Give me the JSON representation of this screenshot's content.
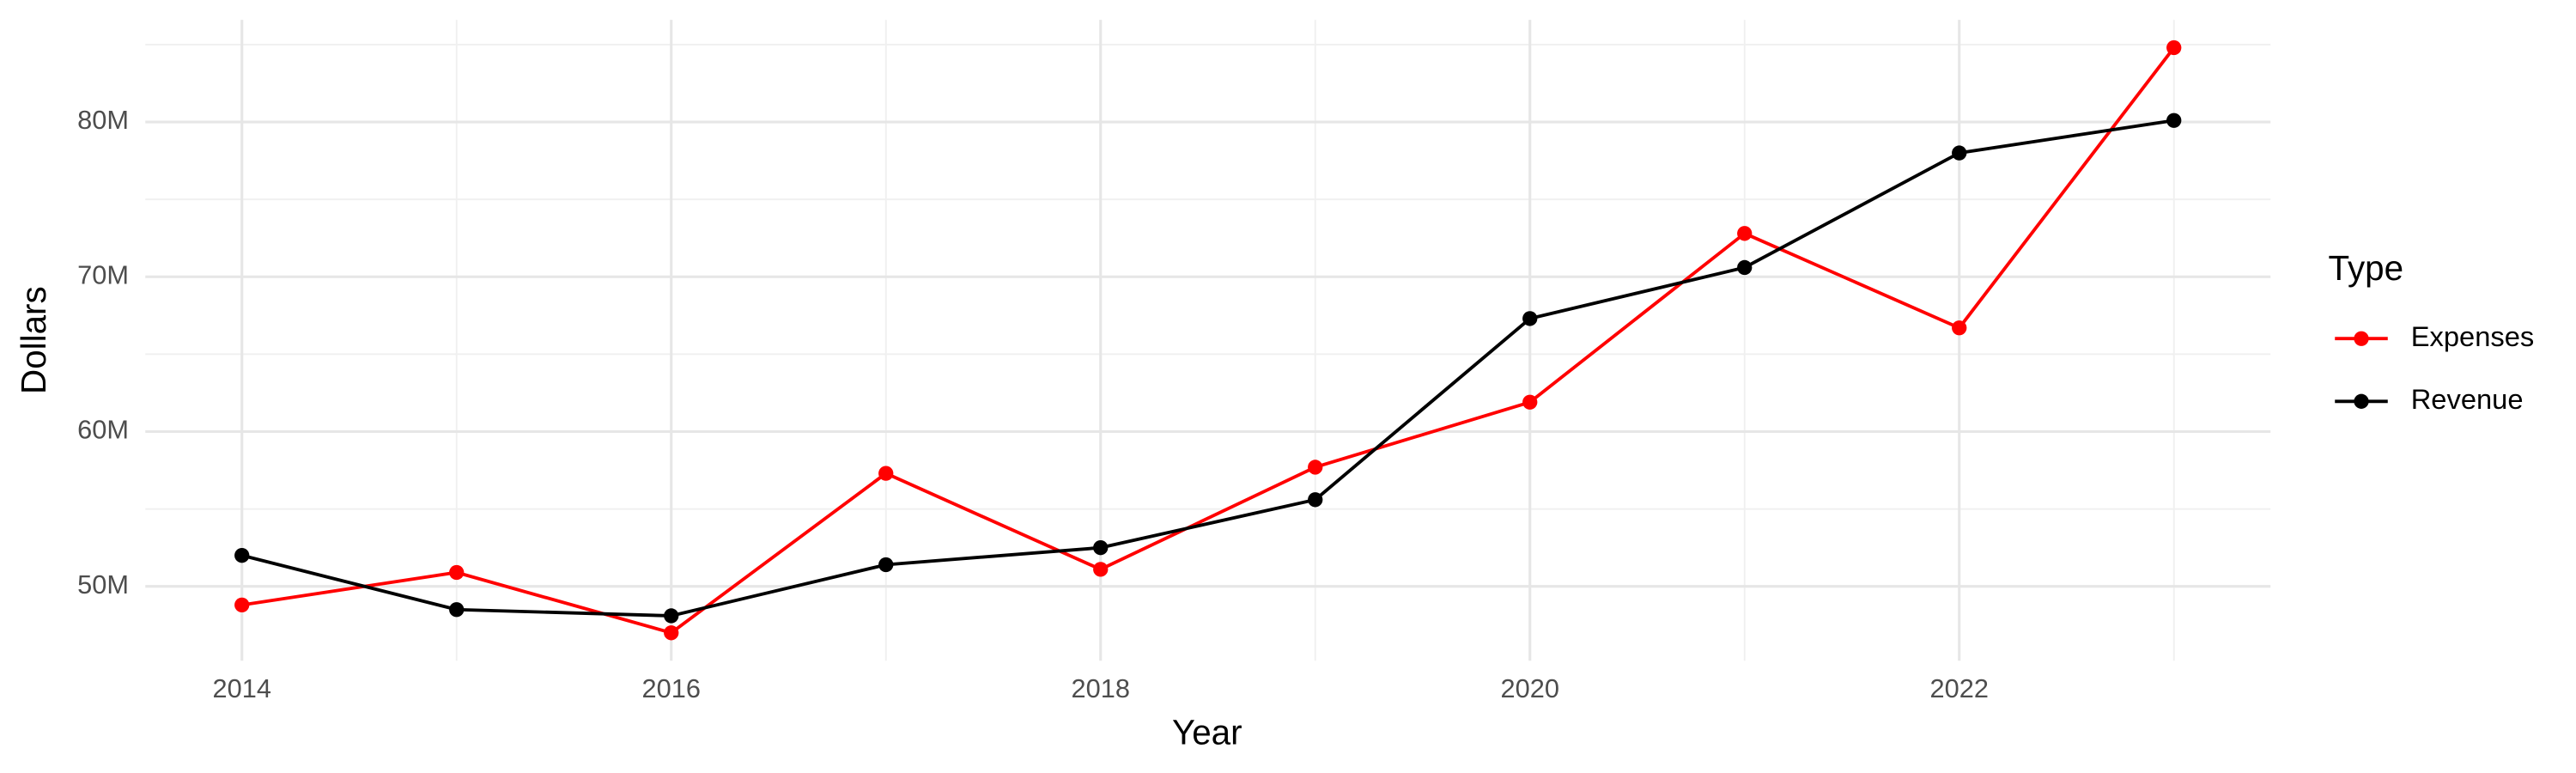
{
  "chart_data": {
    "type": "line",
    "x_label": "Year",
    "y_label": "Dollars",
    "legend_title": "Type",
    "x": [
      2014,
      2015,
      2016,
      2017,
      2018,
      2019,
      2020,
      2021,
      2022,
      2023
    ],
    "series": [
      {
        "name": "Expenses",
        "color": "#ff0000",
        "values": [
          48800000,
          50900000,
          47000000,
          57300000,
          51100000,
          57700000,
          61900000,
          72800000,
          66700000,
          84800000
        ]
      },
      {
        "name": "Revenue",
        "color": "#000000",
        "values": [
          52000000,
          48500000,
          48100000,
          51400000,
          52500000,
          55600000,
          67300000,
          70600000,
          78000000,
          80100000
        ]
      }
    ],
    "xlim": [
      2013.55,
      2023.45
    ],
    "xticks": [
      2014,
      2016,
      2018,
      2020,
      2022
    ],
    "ylim": [
      45200000,
      86600000
    ],
    "yticks": [
      {
        "value": 50000000,
        "label": "50M"
      },
      {
        "value": 60000000,
        "label": "60M"
      },
      {
        "value": 70000000,
        "label": "70M"
      },
      {
        "value": 80000000,
        "label": "80M"
      }
    ],
    "grid": true,
    "legend": "right"
  }
}
